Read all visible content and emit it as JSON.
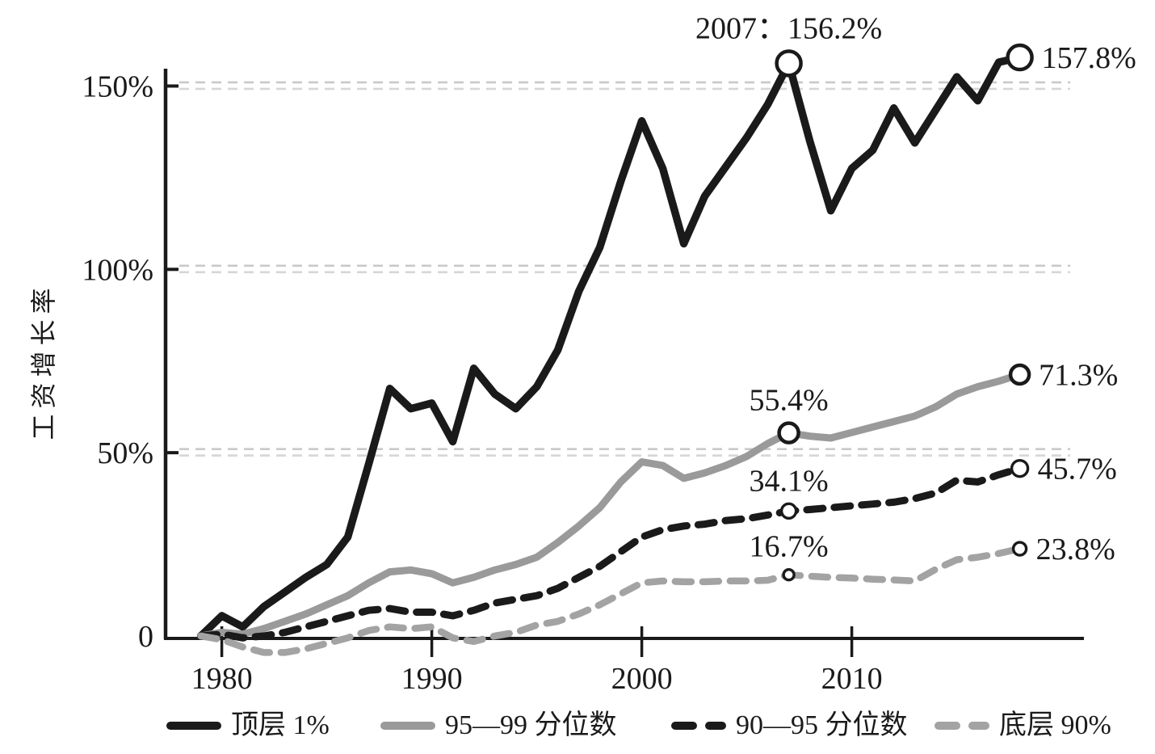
{
  "chart_data": {
    "type": "line",
    "title": "",
    "xlabel": "",
    "ylabel": "工资增长率",
    "grid": "horizontal-dashed-light",
    "legend_position": "bottom",
    "x": [
      1979,
      1980,
      1981,
      1982,
      1983,
      1984,
      1985,
      1986,
      1987,
      1988,
      1989,
      1990,
      1991,
      1992,
      1993,
      1994,
      1995,
      1996,
      1997,
      1998,
      1999,
      2000,
      2001,
      2002,
      2003,
      2004,
      2005,
      2006,
      2007,
      2008,
      2009,
      2010,
      2011,
      2012,
      2013,
      2014,
      2015,
      2016,
      2017,
      2018
    ],
    "x_ticks": [
      {
        "value": 1980,
        "label": "1980"
      },
      {
        "value": 1990,
        "label": "1990"
      },
      {
        "value": 2000,
        "label": "2000"
      },
      {
        "value": 2010,
        "label": "2010"
      }
    ],
    "y_ticks": [
      {
        "value": 0,
        "label": "0"
      },
      {
        "value": 50,
        "label": "50%"
      },
      {
        "value": 100,
        "label": "100%"
      },
      {
        "value": 150,
        "label": "150%"
      }
    ],
    "ylim": [
      -12,
      172
    ],
    "series": [
      {
        "name": "顶层 1%",
        "color": "#1a1a1a",
        "style": "solid",
        "width": 9.5,
        "values": [
          0,
          5.5,
          2.5,
          8,
          12,
          16,
          19.5,
          27,
          47,
          67.5,
          62,
          63.5,
          53,
          73,
          66,
          62,
          68,
          78,
          94,
          106,
          124,
          140.5,
          127.5,
          107,
          120,
          128,
          136,
          145,
          156.2,
          135,
          116,
          127.5,
          132.5,
          144,
          134.5,
          143.5,
          152.5,
          146,
          156.5,
          157.8
        ],
        "markers": [
          {
            "x": 2007,
            "value": 156.2,
            "label": "2007：156.2%",
            "label_position": "above",
            "radius": 15
          },
          {
            "x": 2018,
            "value": 157.8,
            "label": "157.8%",
            "label_position": "right",
            "radius": 15
          }
        ]
      },
      {
        "name": "95—99 分位数",
        "color": "#9a9a9a",
        "style": "solid",
        "width": 9,
        "values": [
          0,
          1,
          0.5,
          2,
          4,
          6,
          8.5,
          11,
          14.5,
          17.5,
          18,
          17,
          14.5,
          16,
          18,
          19.5,
          21.5,
          25.5,
          30,
          35,
          42,
          47.5,
          46.5,
          43,
          44.5,
          46.5,
          49,
          52.5,
          55.4,
          54.5,
          54,
          55.5,
          57,
          58.5,
          60,
          62.5,
          66,
          68,
          69.5,
          71.3
        ],
        "markers": [
          {
            "x": 2007,
            "value": 55.4,
            "label": "55.4%",
            "label_position": "above",
            "radius": 12
          },
          {
            "x": 2018,
            "value": 71.3,
            "label": "71.3%",
            "label_position": "right",
            "radius": 11.5
          }
        ]
      },
      {
        "name": "90—95 分位数",
        "color": "#1a1a1a",
        "style": "dashed",
        "width": 9,
        "values": [
          0,
          0.5,
          -0.5,
          0,
          1,
          2.5,
          4,
          5.5,
          7,
          7.5,
          6.5,
          6.5,
          5.5,
          7,
          9,
          10,
          11,
          13,
          16,
          19,
          23,
          27,
          29,
          30,
          30.5,
          31.5,
          32,
          33,
          34.1,
          34.5,
          35,
          35.5,
          36,
          36.5,
          37.5,
          39,
          42.5,
          42,
          44,
          45.7
        ],
        "markers": [
          {
            "x": 2007,
            "value": 34.1,
            "label": "34.1%",
            "label_position": "above",
            "radius": 9
          },
          {
            "x": 2018,
            "value": 45.7,
            "label": "45.7%",
            "label_position": "right",
            "radius": 10
          }
        ]
      },
      {
        "name": "底层 90%",
        "color": "#a3a3a3",
        "style": "dashed",
        "width": 8.5,
        "values": [
          0,
          -1,
          -3,
          -4.5,
          -4.5,
          -3.5,
          -2,
          -0.5,
          1.5,
          2.5,
          2,
          2.5,
          -0.5,
          -1.5,
          0,
          1,
          3,
          4,
          6,
          8.5,
          11.5,
          14.5,
          15,
          14.8,
          14.8,
          15,
          15,
          15.2,
          16.7,
          16.3,
          16,
          15.8,
          15.5,
          15.3,
          15,
          18.2,
          20.8,
          21.5,
          22.5,
          23.8
        ],
        "markers": [
          {
            "x": 2007,
            "value": 16.7,
            "label": "16.7%",
            "label_position": "above",
            "radius": 6.5
          },
          {
            "x": 2018,
            "value": 23.8,
            "label": "23.8%",
            "label_position": "right",
            "radius": 8
          }
        ]
      }
    ],
    "marker_style": {
      "fill": "#ffffff",
      "stroke": "#1a1a1a"
    },
    "gridline_color": "#cccccc",
    "axis_color": "#1a1a1a"
  }
}
